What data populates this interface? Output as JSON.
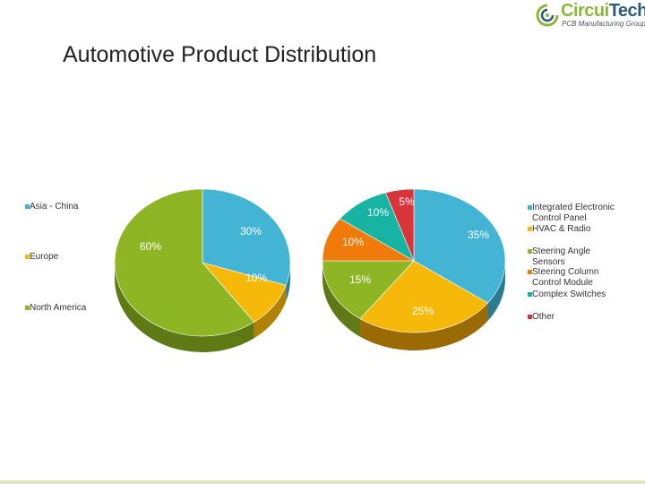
{
  "header": {
    "logo_name_a": "Circui",
    "logo_name_b": "Tech",
    "logo_tagline": "PCB Manufacturing Group",
    "title": "Automotive Product Distribution"
  },
  "chart_data": [
    {
      "type": "pie",
      "title": "",
      "categories": [
        "Asia - China",
        "Europe",
        "North America"
      ],
      "values": [
        30,
        10,
        60
      ],
      "labels": [
        "30%",
        "10%",
        "60%"
      ],
      "colors": [
        "#44b4d4",
        "#f6b90a",
        "#8eb523"
      ],
      "dark_colors": [
        "#2a7c93",
        "#b08307",
        "#5f7a14"
      ],
      "legend_position": "left"
    },
    {
      "type": "pie",
      "title": "",
      "categories": [
        "Integrated Electronic Control Panel",
        "HVAC & Radio",
        "Steering Angle Sensors",
        "Steering Column Control Module",
        "Complex Switches",
        "Other"
      ],
      "values": [
        35,
        25,
        15,
        10,
        10,
        5
      ],
      "labels": [
        "35%",
        "25%",
        "15%",
        "10%",
        "10%",
        "5%"
      ],
      "colors": [
        "#44b4d4",
        "#f6b90a",
        "#8eb523",
        "#f07a0a",
        "#17b3a3",
        "#d9343a"
      ],
      "dark_colors": [
        "#2a7c93",
        "#9a6a05",
        "#5f7a14",
        "#a85505",
        "#0f7d72",
        "#962326"
      ],
      "legend_position": "right"
    }
  ]
}
